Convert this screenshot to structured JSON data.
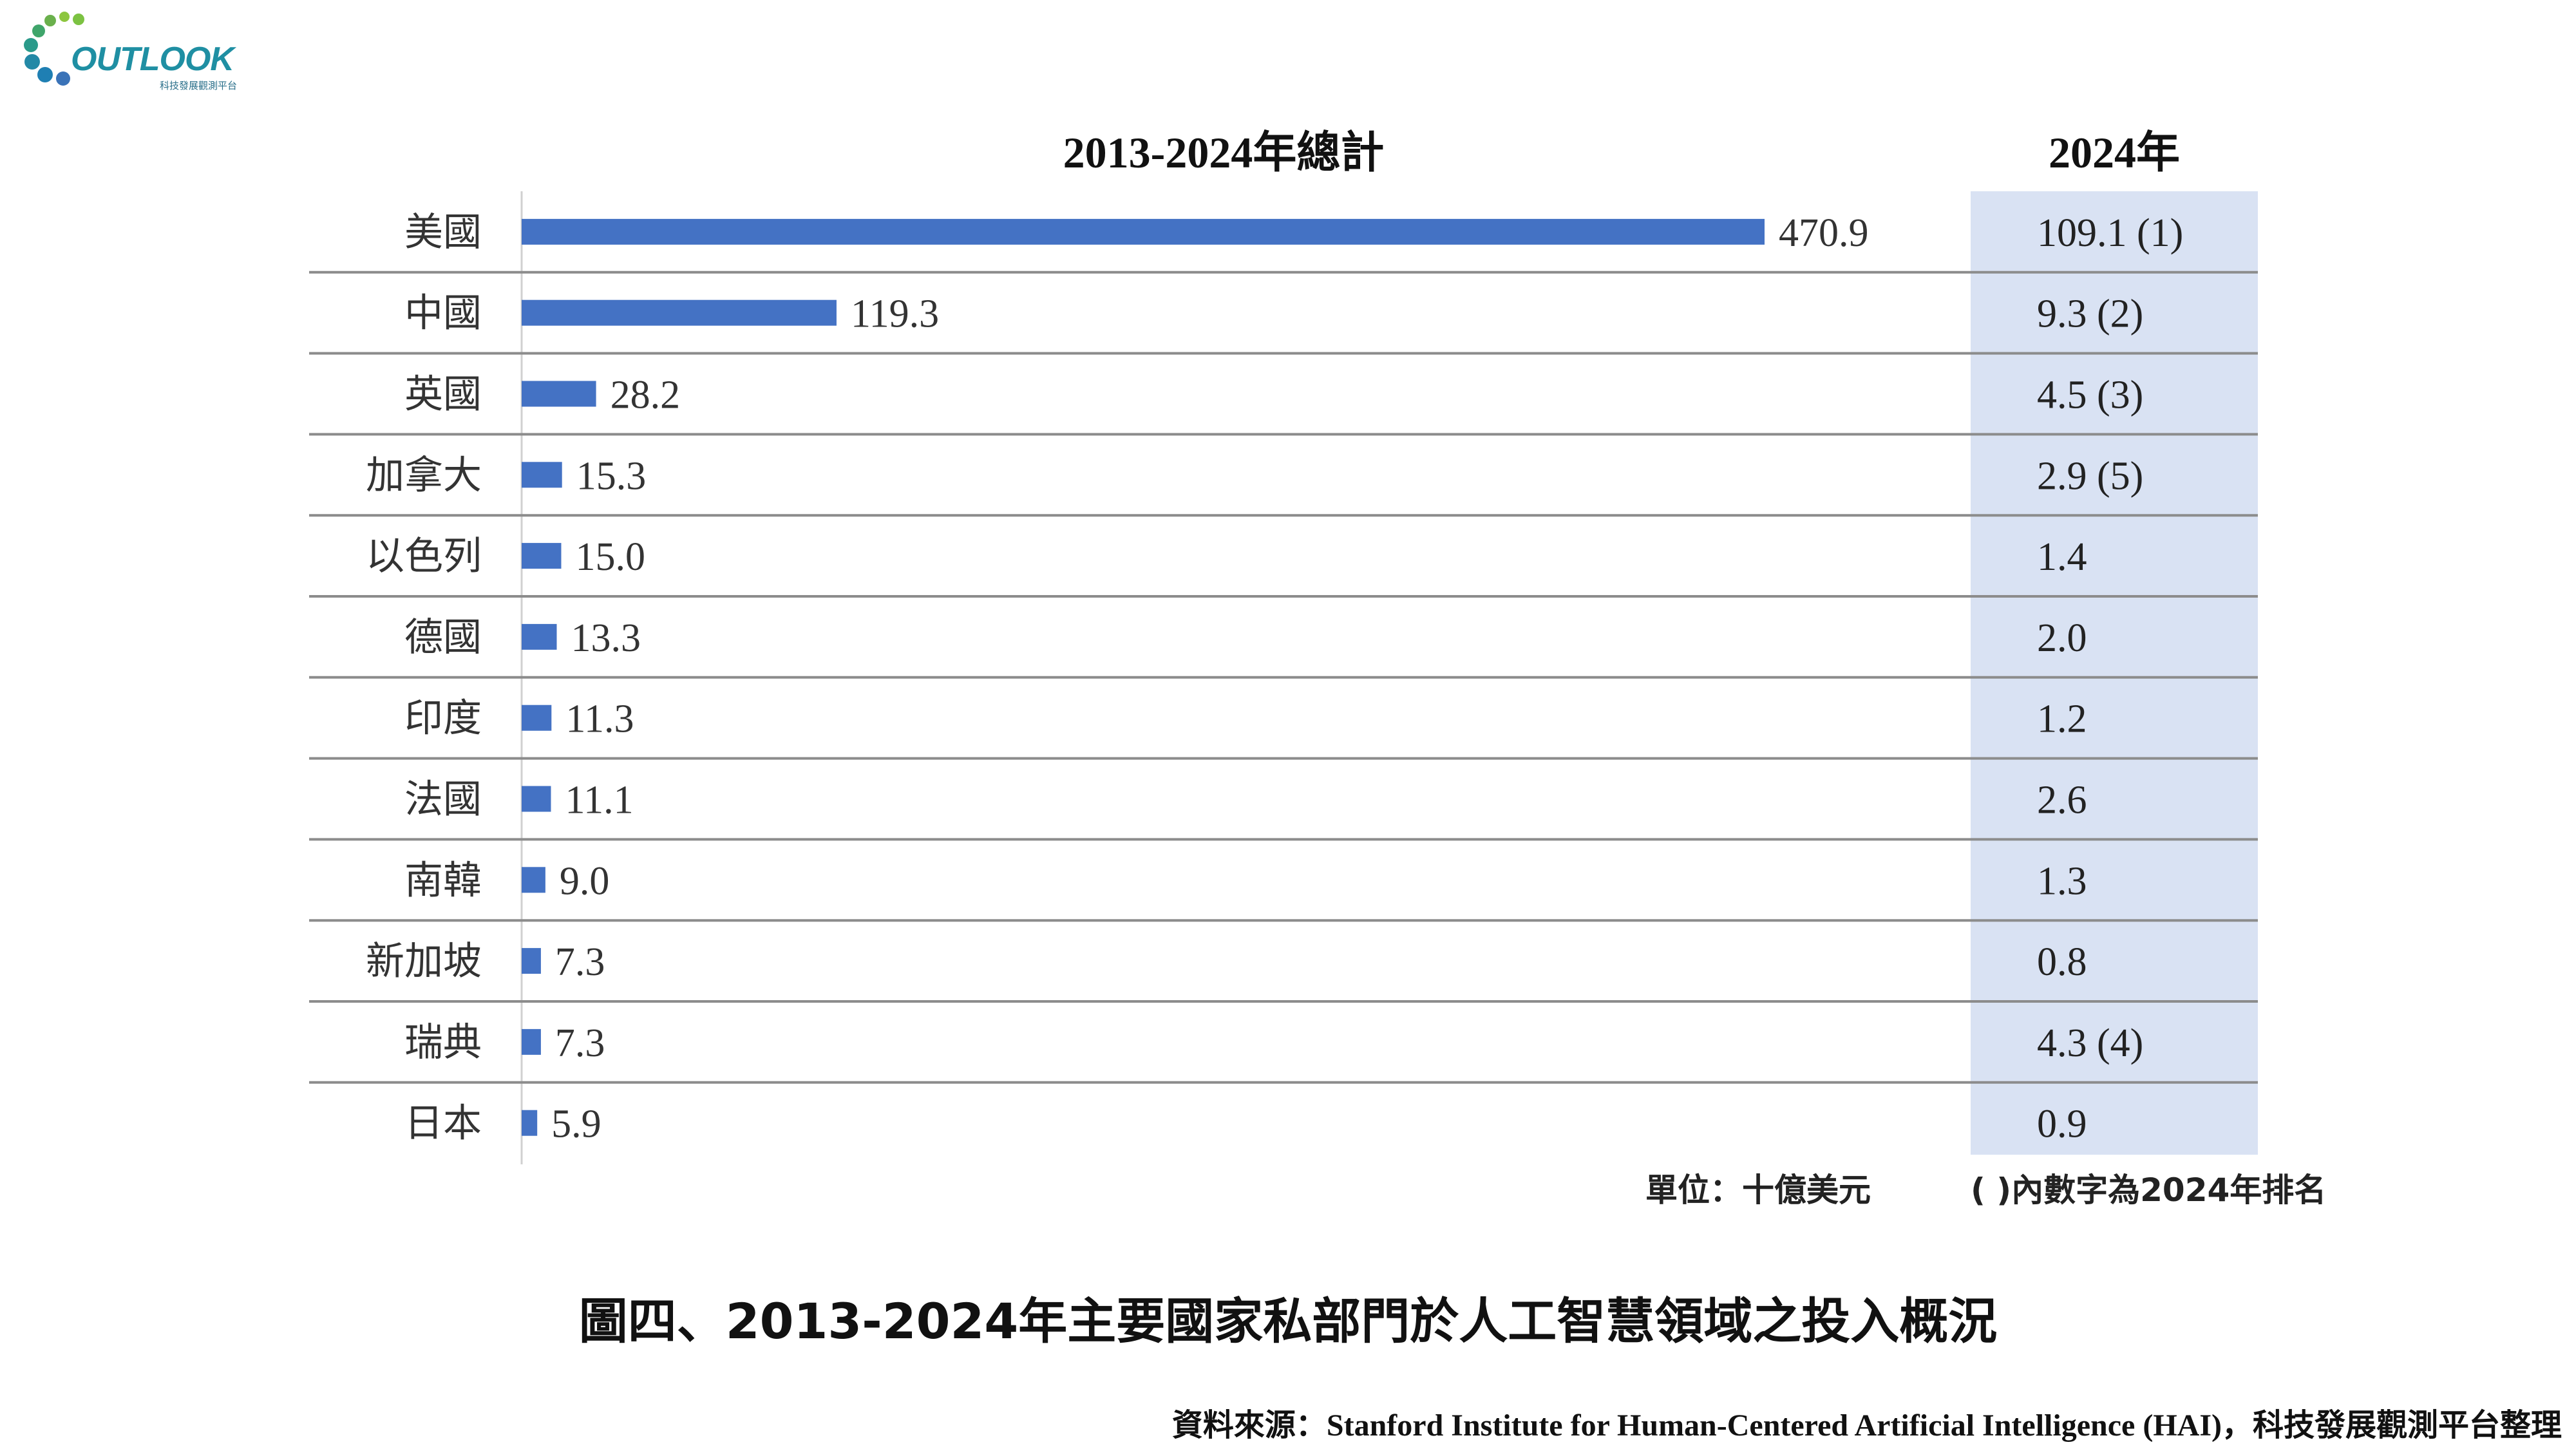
{
  "logo": {
    "wordmark": "OUTLOOK",
    "subtitle": "科技發展觀測平台"
  },
  "chart_data": {
    "type": "bar",
    "orientation": "horizontal",
    "title": "2013-2024年總計",
    "side_title": "2024年",
    "categories": [
      "美國",
      "中國",
      "英國",
      "加拿大",
      "以色列",
      "德國",
      "印度",
      "法國",
      "南韓",
      "新加坡",
      "瑞典",
      "日本"
    ],
    "values": [
      470.9,
      119.3,
      28.2,
      15.3,
      15.0,
      13.3,
      11.3,
      11.1,
      9.0,
      7.3,
      7.3,
      5.9
    ],
    "value_labels": [
      "470.9",
      "119.3",
      "28.2",
      "15.3",
      "15.0",
      "13.3",
      "11.3",
      "11.1",
      "9.0",
      "7.3",
      "7.3",
      "5.9"
    ],
    "side_values": [
      109.1,
      9.3,
      4.5,
      2.9,
      1.4,
      2.0,
      1.2,
      2.6,
      1.3,
      0.8,
      4.3,
      0.9
    ],
    "side_labels": [
      "109.1 (1)",
      "9.3 (2)",
      "4.5 (3)",
      "2.9 (5)",
      "1.4",
      "2.0",
      "1.2",
      "2.6",
      "1.3",
      "0.8",
      "4.3 (4)",
      "0.9"
    ],
    "xlim": [
      0,
      500
    ],
    "grid": false,
    "colors": {
      "bar": "#4472c4",
      "side_column_bg": "#d9e2f3",
      "separator": "#8c8c8c"
    }
  },
  "notes": {
    "unit": "單位：十億美元",
    "rank": "( )內數字為2024年排名"
  },
  "caption": "圖四、2013-2024年主要國家私部門於人工智慧領域之投入概況",
  "source": "資料來源：Stanford Institute for Human-Centered Artificial Intelligence (HAI)，科技發展觀測平台整理"
}
